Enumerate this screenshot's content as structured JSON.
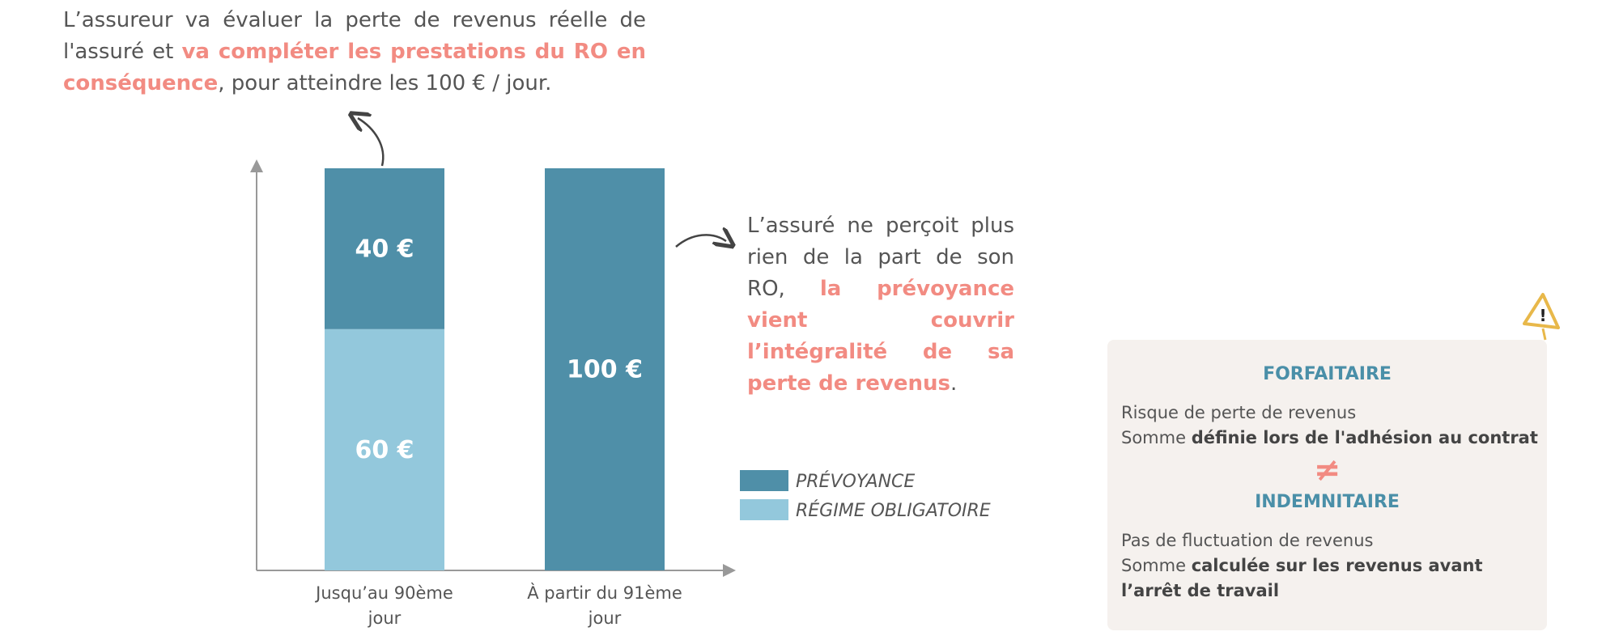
{
  "intro": {
    "parts": [
      "L’assureur va évaluer la perte de revenus réelle de l'assuré et ",
      "va compléter les prestations du RO en conséquence",
      ", pour atteindre les 100 € / jour."
    ]
  },
  "callout": {
    "parts": [
      "L’assuré ne perçoit plus rien de la part de son RO, ",
      "la prévoyance vient couvrir l’intégralité de sa perte de revenus",
      "."
    ]
  },
  "chart_data": {
    "type": "stacked-bar",
    "categories": [
      "Jusqu’au 90ème jour",
      "À partir du 91ème jour"
    ],
    "series": [
      {
        "name": "PRÉVOYANCE",
        "color": "#4f8fa8",
        "values": [
          40,
          100
        ],
        "value_labels": [
          "40 €",
          "100 €"
        ]
      },
      {
        "name": "RÉGIME OBLIGATOIRE",
        "color": "#93c8dc",
        "values": [
          60,
          null
        ],
        "value_labels": [
          "60 €",
          null
        ]
      }
    ],
    "ylim": [
      0,
      100
    ]
  },
  "info_box": {
    "sections": [
      {
        "title": "FORFAITAIRE",
        "lines": [
          [
            "Risque de perte de revenus"
          ],
          [
            "Somme ",
            "définie lors de l'adhésion au contrat"
          ]
        ]
      },
      {
        "title": "INDEMNITAIRE",
        "lines": [
          [
            "Pas de fluctuation de revenus"
          ],
          [
            "Somme ",
            "calculée sur les revenus avant l’arrêt de travail"
          ]
        ]
      }
    ],
    "separator": "≠"
  }
}
